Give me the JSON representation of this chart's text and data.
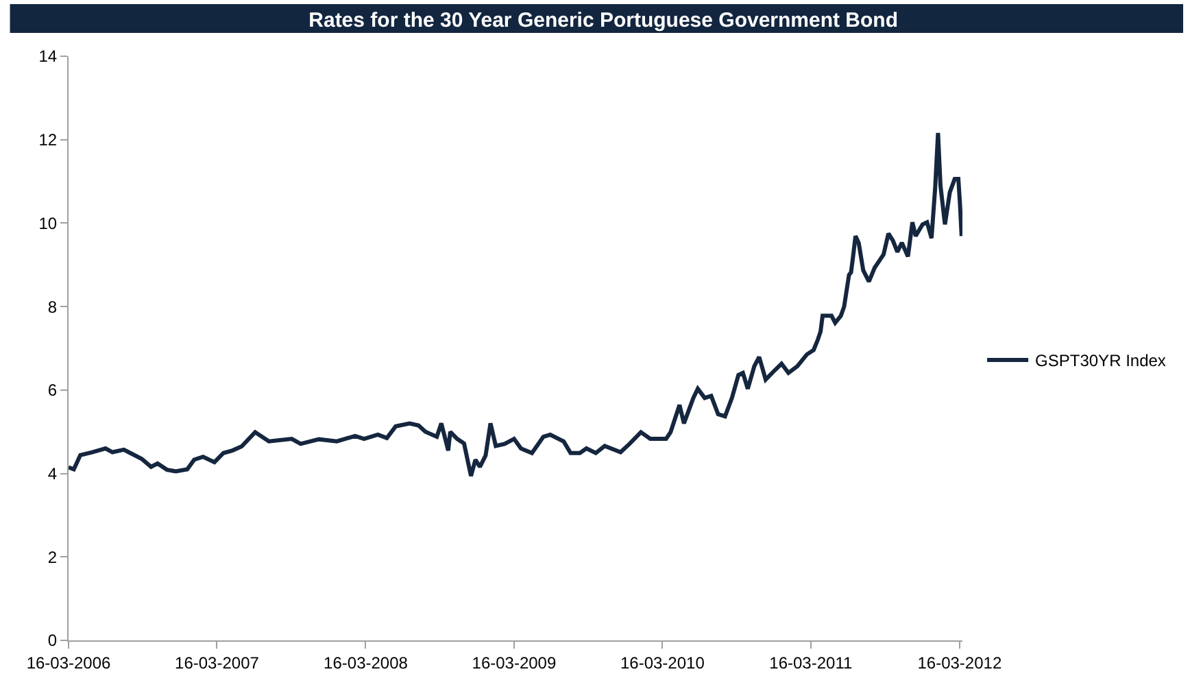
{
  "chart_data": {
    "type": "line",
    "title": "Rates for the 30 Year Generic Portuguese Government Bond",
    "x": [
      "2006-03-16",
      "2006-03-29",
      "2006-04-14",
      "2006-05-13",
      "2006-06-15",
      "2006-07-02",
      "2006-07-30",
      "2006-08-15",
      "2006-09-12",
      "2006-10-05",
      "2006-10-21",
      "2006-11-13",
      "2006-12-05",
      "2007-01-02",
      "2007-01-19",
      "2007-02-10",
      "2007-03-10",
      "2007-04-01",
      "2007-04-23",
      "2007-05-16",
      "2007-06-18",
      "2007-07-05",
      "2007-07-22",
      "2007-09-16",
      "2007-10-08",
      "2007-11-22",
      "2008-01-05",
      "2008-02-19",
      "2008-03-12",
      "2008-04-15",
      "2008-05-07",
      "2008-05-29",
      "2008-07-02",
      "2008-07-24",
      "2008-08-10",
      "2008-09-07",
      "2008-09-18",
      "2008-10-05",
      "2008-10-10",
      "2008-10-27",
      "2008-11-13",
      "2008-11-30",
      "2008-12-11",
      "2008-12-22",
      "2009-01-05",
      "2009-01-17",
      "2009-01-30",
      "2009-02-21",
      "2009-03-16",
      "2009-04-02",
      "2009-04-29",
      "2009-05-27",
      "2009-06-13",
      "2009-07-16",
      "2009-08-02",
      "2009-08-25",
      "2009-09-10",
      "2009-10-03",
      "2009-10-25",
      "2009-12-03",
      "2009-12-25",
      "2010-01-22",
      "2010-02-14",
      "2010-03-25",
      "2010-04-05",
      "2010-04-27",
      "2010-05-08",
      "2010-05-31",
      "2010-06-11",
      "2010-06-28",
      "2010-07-14",
      "2010-07-31",
      "2010-08-17",
      "2010-09-03",
      "2010-09-19",
      "2010-09-30",
      "2010-10-12",
      "2010-10-28",
      "2010-11-09",
      "2010-11-25",
      "2010-12-17",
      "2011-01-03",
      "2011-01-20",
      "2011-02-11",
      "2011-03-06",
      "2011-03-23",
      "2011-04-02",
      "2011-04-09",
      "2011-04-14",
      "2011-05-06",
      "2011-05-15",
      "2011-05-29",
      "2011-06-06",
      "2011-06-18",
      "2011-06-23",
      "2011-06-28",
      "2011-07-04",
      "2011-07-12",
      "2011-07-23",
      "2011-08-06",
      "2011-08-20",
      "2011-08-31",
      "2011-09-11",
      "2011-09-23",
      "2011-10-04",
      "2011-10-15",
      "2011-10-26",
      "2011-11-10",
      "2011-11-21",
      "2011-11-29",
      "2011-12-16",
      "2011-12-27",
      "2012-01-07",
      "2012-01-16",
      "2012-01-23",
      "2012-01-29",
      "2012-02-09",
      "2012-02-21",
      "2012-03-04",
      "2012-03-13",
      "2012-03-17",
      "2012-03-21"
    ],
    "series": [
      {
        "name": "GSPT30YR Index",
        "color": "#15263f",
        "values": [
          4.15,
          4.1,
          4.44,
          4.51,
          4.6,
          4.51,
          4.57,
          4.49,
          4.35,
          4.16,
          4.24,
          4.09,
          4.05,
          4.1,
          4.33,
          4.4,
          4.27,
          4.49,
          4.55,
          4.65,
          4.99,
          4.88,
          4.77,
          4.83,
          4.71,
          4.82,
          4.77,
          4.9,
          4.83,
          4.93,
          4.85,
          5.13,
          5.2,
          5.15,
          5.0,
          4.88,
          5.2,
          4.55,
          5.0,
          4.83,
          4.72,
          3.94,
          4.33,
          4.16,
          4.43,
          5.2,
          4.66,
          4.71,
          4.83,
          4.6,
          4.49,
          4.88,
          4.93,
          4.77,
          4.49,
          4.49,
          4.6,
          4.49,
          4.66,
          4.51,
          4.71,
          4.99,
          4.83,
          4.83,
          4.99,
          5.64,
          5.2,
          5.81,
          6.03,
          5.81,
          5.86,
          5.42,
          5.37,
          5.81,
          6.36,
          6.41,
          6.03,
          6.57,
          6.79,
          6.25,
          6.47,
          6.63,
          6.41,
          6.57,
          6.85,
          6.96,
          7.2,
          7.4,
          7.78,
          7.78,
          7.61,
          7.78,
          8.0,
          8.76,
          8.82,
          9.2,
          9.69,
          9.52,
          8.87,
          8.6,
          8.93,
          9.09,
          9.25,
          9.75,
          9.58,
          9.31,
          9.53,
          9.2,
          10.02,
          9.69,
          9.97,
          10.02,
          9.64,
          10.85,
          12.16,
          10.9,
          9.97,
          10.74,
          11.06,
          11.06,
          10.46,
          9.69
        ]
      }
    ],
    "xlim": [
      "2006-03-16",
      "2012-03-23"
    ],
    "xticks": [
      {
        "value": "2006-03-16",
        "label": "16-03-2006"
      },
      {
        "value": "2007-03-16",
        "label": "16-03-2007"
      },
      {
        "value": "2008-03-16",
        "label": "16-03-2008"
      },
      {
        "value": "2009-03-16",
        "label": "16-03-2009"
      },
      {
        "value": "2010-03-16",
        "label": "16-03-2010"
      },
      {
        "value": "2011-03-16",
        "label": "16-03-2011"
      },
      {
        "value": "2012-03-16",
        "label": "16-03-2012"
      }
    ],
    "ylim": [
      0,
      14
    ],
    "yticks": [
      0,
      2,
      4,
      6,
      8,
      10,
      12,
      14
    ],
    "grid": false,
    "legend": "right",
    "line_style": "solid"
  }
}
